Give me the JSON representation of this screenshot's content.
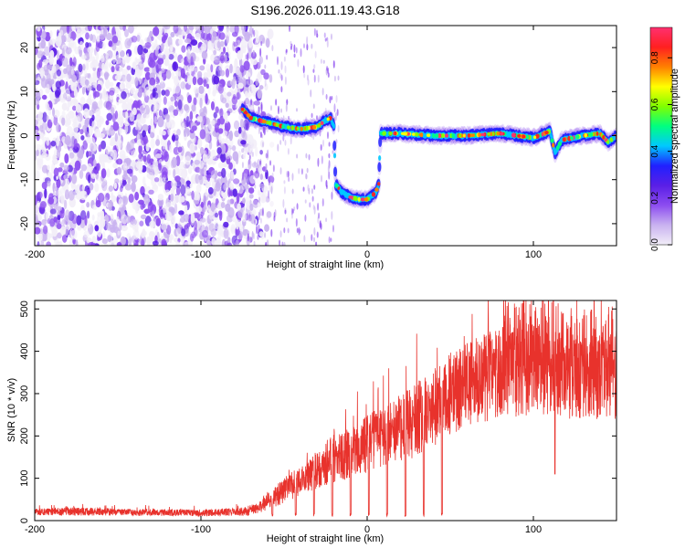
{
  "figure": {
    "title": "S196.2026.011.19.43.G18"
  },
  "colors": {
    "snr_line": "#e8322c",
    "axis": "#000000",
    "background": "#ffffff",
    "colormap": [
      "#f2eef8",
      "#c9b2f0",
      "#8c4cf0",
      "#5a1fe6",
      "#2020ff",
      "#00c8ff",
      "#00ff80",
      "#80ff00",
      "#ffff00",
      "#ff8000",
      "#ff2020",
      "#ff3070"
    ]
  },
  "chart_data": [
    {
      "type": "heatmap",
      "title": "S196.2026.011.19.43.G18",
      "xlabel": "Height of straight line (km)",
      "ylabel": "Frequency (Hz)",
      "xlim": [
        -200,
        150
      ],
      "ylim": [
        -25,
        25
      ],
      "xticks": [
        -200,
        -100,
        0,
        100
      ],
      "yticks": [
        -20,
        -10,
        0,
        10,
        20
      ],
      "colorbar": {
        "label": "Normalized spectral amplitude",
        "range": [
          0,
          0.93
        ],
        "ticks": [
          0.0,
          0.2,
          0.4,
          0.6,
          0.8
        ]
      },
      "noise_region": {
        "x_from": -200,
        "x_to": -75,
        "fade_to": -55,
        "amplitude": 0.25
      },
      "signal_ridge": [
        {
          "x": -75,
          "f": 6
        },
        {
          "x": -70,
          "f": 4
        },
        {
          "x": -60,
          "f": 3
        },
        {
          "x": -50,
          "f": 2
        },
        {
          "x": -40,
          "f": 1.5
        },
        {
          "x": -30,
          "f": 2
        },
        {
          "x": -25,
          "f": 3.5
        },
        {
          "x": -22,
          "f": 4
        },
        {
          "x": -20,
          "f": 2
        },
        {
          "x": -19,
          "f": -11
        },
        {
          "x": -15,
          "f": -13
        },
        {
          "x": -10,
          "f": -14
        },
        {
          "x": -5,
          "f": -14.5
        },
        {
          "x": 0,
          "f": -14.5
        },
        {
          "x": 5,
          "f": -13
        },
        {
          "x": 7,
          "f": -11
        },
        {
          "x": 8,
          "f": 0.5
        },
        {
          "x": 20,
          "f": 0.5
        },
        {
          "x": 40,
          "f": 0
        },
        {
          "x": 60,
          "f": 0
        },
        {
          "x": 80,
          "f": 0.5
        },
        {
          "x": 100,
          "f": -0.5
        },
        {
          "x": 110,
          "f": 1
        },
        {
          "x": 113,
          "f": -4
        },
        {
          "x": 117,
          "f": -1
        },
        {
          "x": 130,
          "f": 0
        },
        {
          "x": 140,
          "f": 0.5
        },
        {
          "x": 145,
          "f": -1.5
        },
        {
          "x": 150,
          "f": 0
        }
      ]
    },
    {
      "type": "line",
      "xlabel": "Height of straight line (km)",
      "ylabel": "SNR (10 * v/v)",
      "xlim": [
        -200,
        150
      ],
      "ylim": [
        0,
        520
      ],
      "xticks": [
        -200,
        -100,
        0,
        100
      ],
      "yticks": [
        0,
        100,
        200,
        300,
        400,
        500
      ],
      "series": [
        {
          "name": "SNR",
          "envelope": [
            {
              "x": -200,
              "mean": 20,
              "spread": 8
            },
            {
              "x": -180,
              "mean": 22,
              "spread": 10
            },
            {
              "x": -150,
              "mean": 20,
              "spread": 8
            },
            {
              "x": -100,
              "mean": 18,
              "spread": 8
            },
            {
              "x": -70,
              "mean": 22,
              "spread": 10
            },
            {
              "x": -60,
              "mean": 45,
              "spread": 20
            },
            {
              "x": -50,
              "mean": 70,
              "spread": 30
            },
            {
              "x": -40,
              "mean": 95,
              "spread": 35
            },
            {
              "x": -30,
              "mean": 120,
              "spread": 45
            },
            {
              "x": -20,
              "mean": 150,
              "spread": 60
            },
            {
              "x": -10,
              "mean": 160,
              "spread": 60
            },
            {
              "x": 0,
              "mean": 180,
              "spread": 70
            },
            {
              "x": 10,
              "mean": 200,
              "spread": 70
            },
            {
              "x": 20,
              "mean": 220,
              "spread": 80
            },
            {
              "x": 30,
              "mean": 240,
              "spread": 90
            },
            {
              "x": 40,
              "mean": 260,
              "spread": 90
            },
            {
              "x": 50,
              "mean": 300,
              "spread": 100
            },
            {
              "x": 60,
              "mean": 320,
              "spread": 100
            },
            {
              "x": 80,
              "mean": 350,
              "spread": 110
            },
            {
              "x": 100,
              "mean": 360,
              "spread": 110
            },
            {
              "x": 120,
              "mean": 340,
              "spread": 100
            },
            {
              "x": 150,
              "mean": 340,
              "spread": 100
            }
          ],
          "dropouts": [
            -57,
            -43,
            -32,
            -21,
            -10,
            1,
            12,
            23,
            34,
            45
          ],
          "dropout_min": 10,
          "peak": {
            "x": 112,
            "value": 520
          },
          "dip": {
            "x": 113,
            "value": 110
          }
        }
      ]
    }
  ]
}
